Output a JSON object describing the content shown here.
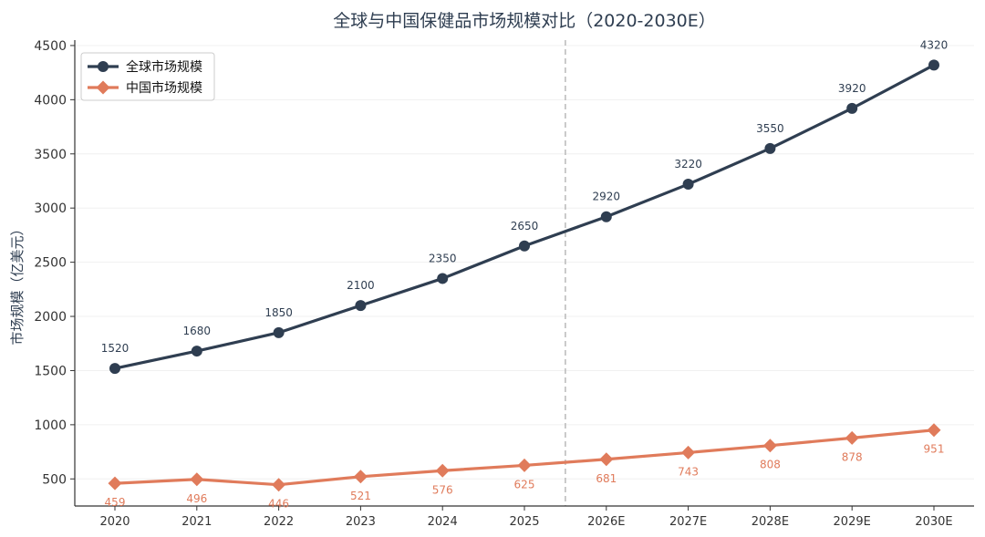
{
  "chart_data": {
    "type": "line",
    "title": "全球与中国保健品市场规模对比（2020-2030E）",
    "xlabel": "",
    "ylabel": "市场规模（亿美元）",
    "categories": [
      "2020",
      "2021",
      "2022",
      "2023",
      "2024",
      "2025",
      "2026E",
      "2027E",
      "2028E",
      "2029E",
      "2030E"
    ],
    "ylim": [
      250,
      4550
    ],
    "yticks": [
      500,
      1000,
      1500,
      2000,
      2500,
      3000,
      3500,
      4000,
      4500
    ],
    "grid": true,
    "legend": "top-left",
    "divider_after_category": "2025",
    "series": [
      {
        "name": "全球市场规模",
        "color": "#2f3e51",
        "marker": "circle",
        "label_position": "above",
        "values": [
          1520,
          1680,
          1850,
          2100,
          2350,
          2650,
          2920,
          3220,
          3550,
          3920,
          4320
        ]
      },
      {
        "name": "中国市场规模",
        "color": "#e07b5b",
        "marker": "diamond",
        "label_position": "below",
        "values": [
          459,
          496,
          446,
          521,
          576,
          625,
          681,
          743,
          808,
          878,
          951
        ]
      }
    ]
  }
}
